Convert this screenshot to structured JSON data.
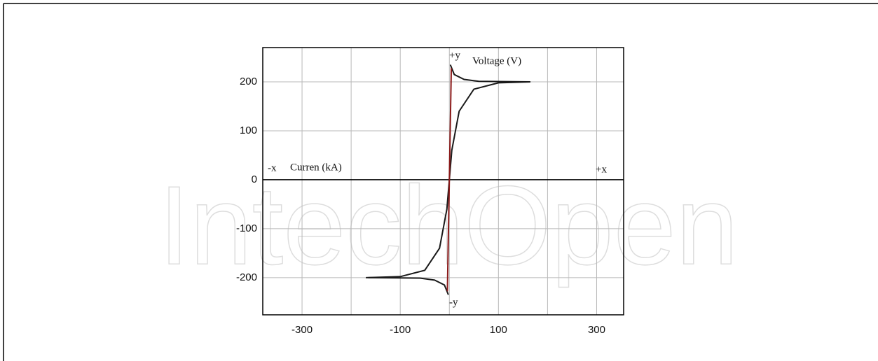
{
  "chart_data": {
    "type": "line",
    "annotations": [
      "+y",
      "Voltage (V)",
      "-x",
      "Curren (kA)",
      "+x",
      "-y"
    ],
    "watermark": "IntechOpen",
    "xlim": [
      -380,
      355
    ],
    "ylim": [
      -276,
      270
    ],
    "xticks": [
      -300,
      -100,
      100,
      300
    ],
    "xgrid": [
      -300,
      -200,
      -100,
      0,
      100,
      200,
      300
    ],
    "yticks": [
      -200,
      -100,
      0,
      100,
      200
    ],
    "grid": true,
    "series": [
      {
        "color": "#1a1a1a",
        "x": [
          -170,
          -100,
          -50,
          -20,
          -5,
          0,
          5,
          20,
          50,
          100,
          165
        ],
        "values": [
          -200,
          -198,
          -185,
          -140,
          -60,
          0,
          60,
          140,
          185,
          198,
          200
        ]
      },
      {
        "color": "#1a1a1a",
        "x": [
          2,
          10,
          30,
          60,
          165
        ],
        "values": [
          235,
          215,
          205,
          201,
          200
        ]
      },
      {
        "color": "#1a1a1a",
        "x": [
          -165,
          -60,
          -30,
          -10,
          -2
        ],
        "values": [
          -200,
          -201,
          -205,
          -215,
          -235
        ]
      },
      {
        "color": "#8b1a1a",
        "x": [
          -4,
          4
        ],
        "values": [
          -228,
          228
        ]
      }
    ]
  }
}
